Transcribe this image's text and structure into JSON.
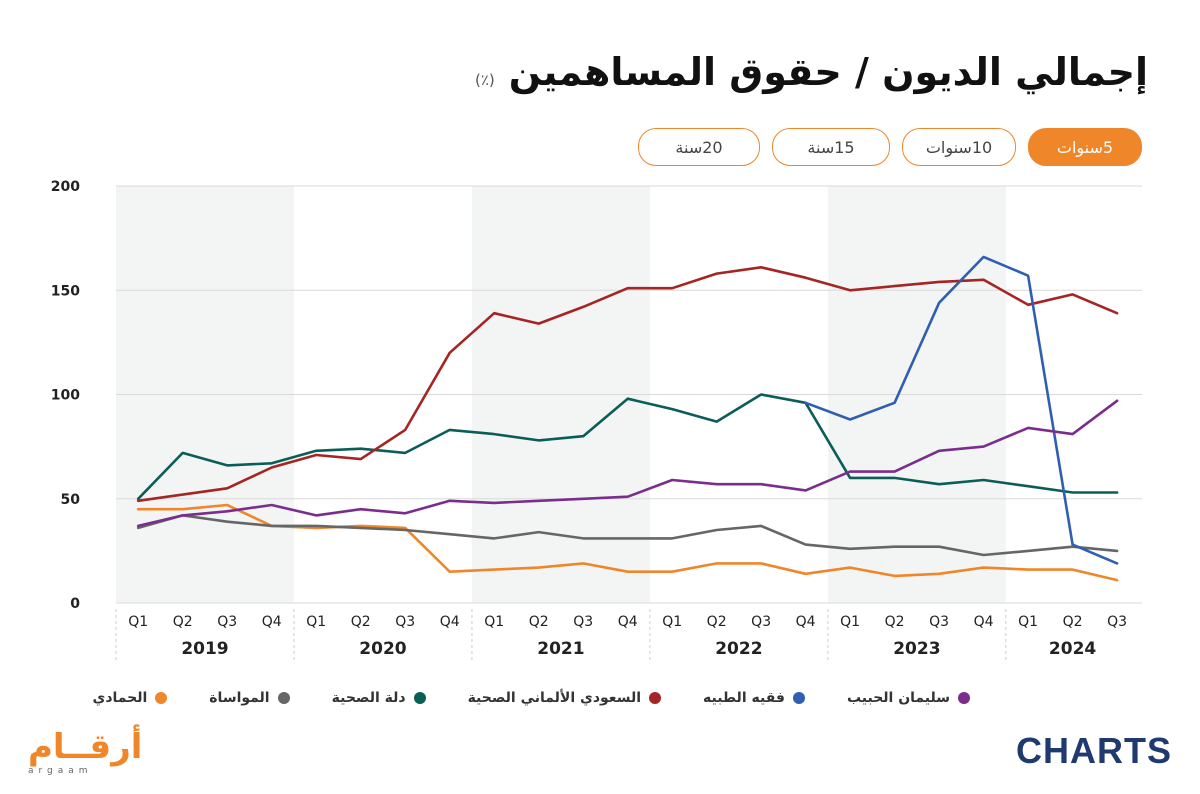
{
  "header": {
    "title": "إجمالي الديون / حقوق المساهمين",
    "unit": "(٪)"
  },
  "tabs": [
    {
      "label": "5سنوات",
      "active": true
    },
    {
      "label": "10سنوات",
      "active": false
    },
    {
      "label": "15سنة",
      "active": false
    },
    {
      "label": "20سنة",
      "active": false
    }
  ],
  "logos": {
    "left_ar": "أرقــام",
    "left_en": "argaam",
    "right": "CHARTS"
  },
  "chart_data": {
    "type": "line",
    "ylim": [
      0,
      200
    ],
    "yticks": [
      0,
      50,
      100,
      150,
      200
    ],
    "grid": true,
    "legend_position": "bottom",
    "categories": [
      "Q1",
      "Q2",
      "Q3",
      "Q4",
      "Q1",
      "Q2",
      "Q3",
      "Q4",
      "Q1",
      "Q2",
      "Q3",
      "Q4",
      "Q1",
      "Q2",
      "Q3",
      "Q4",
      "Q1",
      "Q2",
      "Q3",
      "Q4",
      "Q1",
      "Q2",
      "Q3"
    ],
    "years": [
      {
        "label": "2019",
        "start": 0,
        "count": 4,
        "shaded": true
      },
      {
        "label": "2020",
        "start": 4,
        "count": 4,
        "shaded": false
      },
      {
        "label": "2021",
        "start": 8,
        "count": 4,
        "shaded": true
      },
      {
        "label": "2022",
        "start": 12,
        "count": 4,
        "shaded": false
      },
      {
        "label": "2023",
        "start": 16,
        "count": 4,
        "shaded": true
      },
      {
        "label": "2024",
        "start": 20,
        "count": 3,
        "shaded": false
      }
    ],
    "series": [
      {
        "name": "الحمادي",
        "color": "#f0862a",
        "values": [
          45,
          45,
          47,
          37,
          36,
          37,
          36,
          15,
          16,
          17,
          19,
          15,
          15,
          19,
          19,
          14,
          17,
          13,
          14,
          17,
          16,
          16,
          11
        ]
      },
      {
        "name": "المواساة",
        "color": "#666666",
        "values": [
          36,
          42,
          39,
          37,
          37,
          36,
          35,
          33,
          31,
          34,
          31,
          31,
          31,
          35,
          37,
          28,
          26,
          27,
          27,
          23,
          25,
          27,
          25
        ]
      },
      {
        "name": "دلة الصحية",
        "color": "#0b5e57",
        "values": [
          50,
          72,
          66,
          67,
          73,
          74,
          72,
          83,
          81,
          78,
          80,
          98,
          93,
          87,
          100,
          96,
          60,
          60,
          57,
          59,
          56,
          53,
          53
        ]
      },
      {
        "name": "السعودي الألماني الصحية",
        "color": "#a52524",
        "values": [
          49,
          52,
          55,
          65,
          71,
          69,
          83,
          120,
          139,
          134,
          142,
          151,
          151,
          158,
          161,
          156,
          150,
          152,
          154,
          155,
          143,
          148,
          139
        ]
      },
      {
        "name": "فقيه الطبيه",
        "color": "#2f5fb0",
        "values": [
          null,
          null,
          null,
          null,
          null,
          null,
          null,
          null,
          null,
          null,
          null,
          null,
          null,
          null,
          null,
          96,
          88,
          96,
          144,
          166,
          157,
          28,
          19
        ]
      },
      {
        "name": "سليمان الحبيب",
        "color": "#7b2d8e",
        "values": [
          37,
          42,
          44,
          47,
          42,
          45,
          43,
          49,
          48,
          49,
          50,
          51,
          59,
          57,
          57,
          54,
          63,
          63,
          73,
          75,
          84,
          81,
          97
        ]
      }
    ]
  }
}
